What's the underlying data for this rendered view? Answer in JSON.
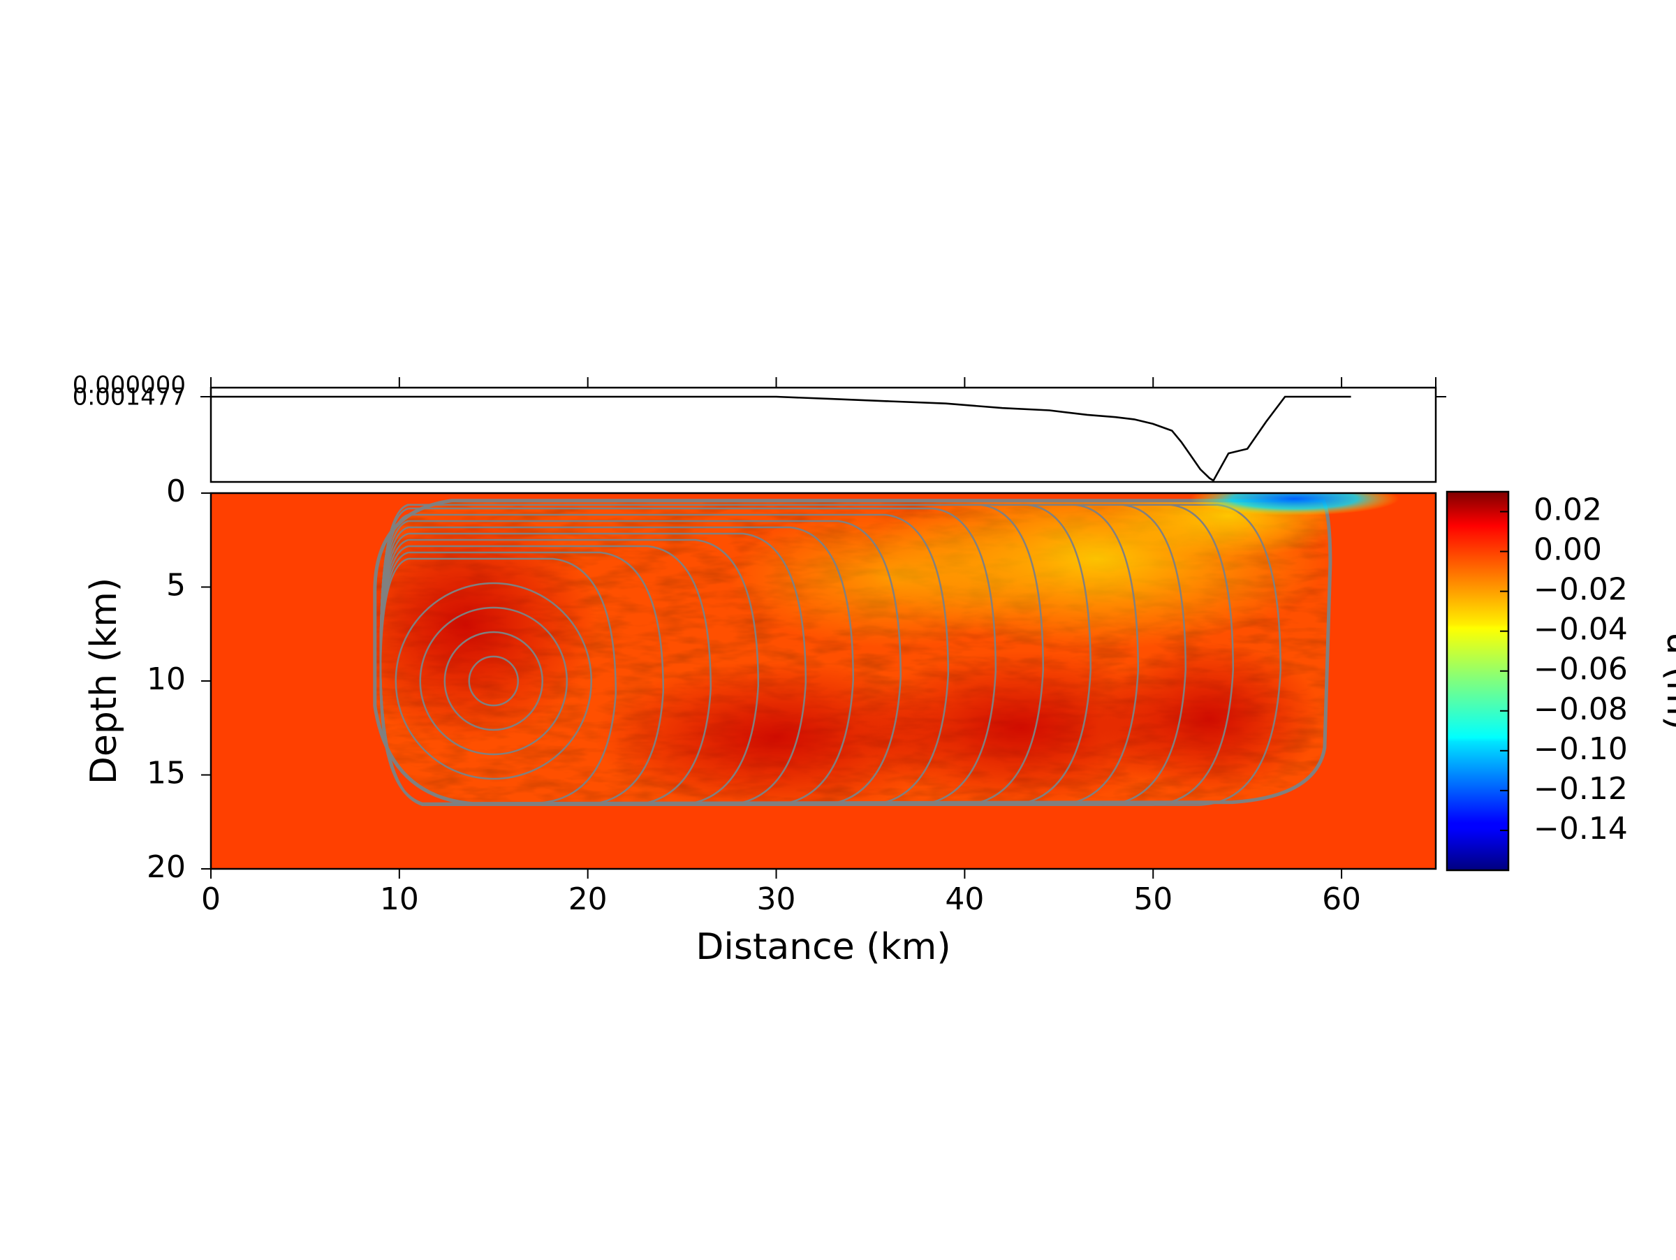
{
  "figure": {
    "background": "#ffffff"
  },
  "chart_data": [
    {
      "type": "line",
      "name": "surface-profile",
      "x_range": [
        0,
        65
      ],
      "y_ticks": [
        "0.000000",
        "0.001477"
      ],
      "color": "#000000",
      "x": [
        0,
        10,
        20,
        22.5,
        26,
        30,
        33,
        36,
        39,
        42,
        44.5,
        46.5,
        48,
        49,
        50,
        51,
        51.5,
        52,
        52.5,
        53,
        53.2,
        54,
        55,
        56,
        57,
        58,
        60.5
      ],
      "y": [
        0.0,
        0.0,
        0.0,
        0.0,
        0.0,
        0.0,
        0.0001,
        0.0002,
        0.0003,
        0.0005,
        0.0006,
        0.0008,
        0.0009,
        0.001,
        0.0012,
        0.0015,
        0.002,
        0.0026,
        0.0032,
        0.0036,
        0.0037,
        0.0025,
        0.0023,
        0.0011,
        0.0,
        0.0,
        0.0
      ]
    },
    {
      "type": "heatmap",
      "name": "slip-field",
      "xlabel": "Distance (km)",
      "ylabel": "Depth (km)",
      "x_range": [
        0,
        65
      ],
      "y_range": [
        0,
        20
      ],
      "x_ticks": [
        0,
        10,
        20,
        30,
        40,
        50,
        60
      ],
      "y_ticks": [
        0,
        5,
        10,
        15,
        20
      ],
      "background_value": 0.0,
      "colormap": "jet",
      "hypocenter": {
        "x": 15,
        "y": 10
      },
      "rupture_region": {
        "x_min": 8.7,
        "x_max": 59.4,
        "y_min": 0.4,
        "y_max": 16.9
      },
      "contour_color": "#808080",
      "near_surface_low": {
        "x": 57.5,
        "y": 0.3,
        "value": -0.13
      },
      "colorbar": {
        "label": "u (m)",
        "range": [
          -0.16,
          0.03
        ],
        "ticks": [
          "0.02",
          "0.00",
          "−0.02",
          "−0.04",
          "−0.06",
          "−0.08",
          "−0.10",
          "−0.12",
          "−0.14"
        ],
        "tick_values": [
          0.02,
          0.0,
          -0.02,
          -0.04,
          -0.06,
          -0.08,
          -0.1,
          -0.12,
          -0.14
        ]
      }
    }
  ]
}
